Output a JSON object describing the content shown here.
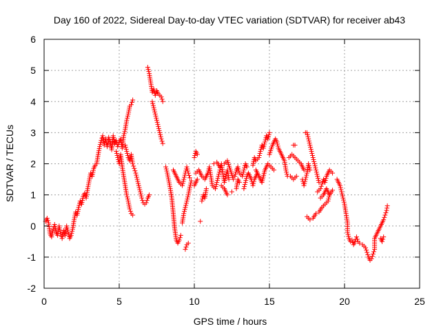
{
  "chart_data": {
    "type": "scatter",
    "title": "Day 160 of 2022, Sidereal Day-to-day VTEC variation (SDTVAR) for receiver ab43",
    "xlabel": "GPS time / hours",
    "ylabel": "SDTVAR / TECUs",
    "xlim": [
      0,
      25
    ],
    "ylim": [
      -2,
      6
    ],
    "xticks": [
      0,
      5,
      10,
      15,
      20,
      25
    ],
    "yticks": [
      -2,
      -1,
      0,
      1,
      2,
      3,
      4,
      5,
      6
    ],
    "xtick_labels": [
      "0",
      "5",
      "10",
      "15",
      "20",
      "25"
    ],
    "ytick_labels": [
      "-2",
      "-1",
      "0",
      "1",
      "2",
      "3",
      "4",
      "5",
      "6"
    ],
    "grid": true,
    "marker": "plus",
    "marker_color": "#ff0000",
    "series": [
      {
        "name": "ab43",
        "points": [
          [
            0.1,
            0.15
          ],
          [
            0.2,
            0.25
          ],
          [
            0.3,
            0.1
          ],
          [
            0.4,
            -0.25
          ],
          [
            0.5,
            -0.35
          ],
          [
            0.6,
            -0.1
          ],
          [
            0.7,
            0.05
          ],
          [
            0.8,
            -0.2
          ],
          [
            0.9,
            -0.3
          ],
          [
            1.0,
            0.0
          ],
          [
            1.1,
            -0.25
          ],
          [
            1.2,
            -0.4
          ],
          [
            1.3,
            -0.15
          ],
          [
            1.4,
            -0.3
          ],
          [
            1.5,
            0.0
          ],
          [
            1.6,
            -0.2
          ],
          [
            1.7,
            -0.4
          ],
          [
            1.8,
            -0.3
          ],
          [
            1.9,
            -0.1
          ],
          [
            2.0,
            0.2
          ],
          [
            2.1,
            0.45
          ],
          [
            2.2,
            0.35
          ],
          [
            2.3,
            0.6
          ],
          [
            2.4,
            0.8
          ],
          [
            2.5,
            0.7
          ],
          [
            2.6,
            0.95
          ],
          [
            2.7,
            1.05
          ],
          [
            2.8,
            0.9
          ],
          [
            2.9,
            1.2
          ],
          [
            3.0,
            1.45
          ],
          [
            3.1,
            1.7
          ],
          [
            3.2,
            1.6
          ],
          [
            3.3,
            1.85
          ],
          [
            3.4,
            1.95
          ],
          [
            3.5,
            2.0
          ],
          [
            3.6,
            2.3
          ],
          [
            3.7,
            2.55
          ],
          [
            3.8,
            2.75
          ],
          [
            3.9,
            2.9
          ],
          [
            4.0,
            2.6
          ],
          [
            4.1,
            2.8
          ],
          [
            4.2,
            2.55
          ],
          [
            4.3,
            2.85
          ],
          [
            4.4,
            2.7
          ],
          [
            4.5,
            2.45
          ],
          [
            4.6,
            2.9
          ],
          [
            4.7,
            2.65
          ],
          [
            4.8,
            2.75
          ],
          [
            4.9,
            2.55
          ],
          [
            5.0,
            2.7
          ],
          [
            5.1,
            2.8
          ],
          [
            5.2,
            2.5
          ],
          [
            5.3,
            2.9
          ],
          [
            5.4,
            3.1
          ],
          [
            5.5,
            3.4
          ],
          [
            5.6,
            3.6
          ],
          [
            5.7,
            3.85
          ],
          [
            5.8,
            3.9
          ],
          [
            5.9,
            4.05
          ],
          [
            4.8,
            2.4
          ],
          [
            4.9,
            2.2
          ],
          [
            5.0,
            2.0
          ],
          [
            5.1,
            2.3
          ],
          [
            5.2,
            1.9
          ],
          [
            5.3,
            1.6
          ],
          [
            5.4,
            1.3
          ],
          [
            5.5,
            1.0
          ],
          [
            5.6,
            0.8
          ],
          [
            5.7,
            0.55
          ],
          [
            5.8,
            0.4
          ],
          [
            5.9,
            0.35
          ],
          [
            5.4,
            2.6
          ],
          [
            5.5,
            2.4
          ],
          [
            5.6,
            2.2
          ],
          [
            5.7,
            2.1
          ],
          [
            5.8,
            2.3
          ],
          [
            5.9,
            2.0
          ],
          [
            6.0,
            1.85
          ],
          [
            6.1,
            1.7
          ],
          [
            6.2,
            1.5
          ],
          [
            6.3,
            1.3
          ],
          [
            6.4,
            1.1
          ],
          [
            6.5,
            0.9
          ],
          [
            6.6,
            0.75
          ],
          [
            6.7,
            0.7
          ],
          [
            6.8,
            0.75
          ],
          [
            6.9,
            0.9
          ],
          [
            7.0,
            1.0
          ],
          [
            6.9,
            5.1
          ],
          [
            7.0,
            4.9
          ],
          [
            7.1,
            4.6
          ],
          [
            7.2,
            4.3
          ],
          [
            7.3,
            4.4
          ],
          [
            7.4,
            4.2
          ],
          [
            7.5,
            4.35
          ],
          [
            7.6,
            4.25
          ],
          [
            7.7,
            4.2
          ],
          [
            7.8,
            4.15
          ],
          [
            7.9,
            4.0
          ],
          [
            7.2,
            4.0
          ],
          [
            7.3,
            3.8
          ],
          [
            7.4,
            3.6
          ],
          [
            7.5,
            3.4
          ],
          [
            7.6,
            3.2
          ],
          [
            7.7,
            3.0
          ],
          [
            7.8,
            2.8
          ],
          [
            7.9,
            2.65
          ],
          [
            8.1,
            1.9
          ],
          [
            8.2,
            1.7
          ],
          [
            8.3,
            1.45
          ],
          [
            8.4,
            1.2
          ],
          [
            8.5,
            0.9
          ],
          [
            8.6,
            0.4
          ],
          [
            8.7,
            -0.1
          ],
          [
            8.8,
            -0.45
          ],
          [
            8.9,
            -0.55
          ],
          [
            9.0,
            -0.45
          ],
          [
            9.1,
            -0.3
          ],
          [
            8.6,
            1.8
          ],
          [
            8.8,
            1.6
          ],
          [
            9.0,
            1.4
          ],
          [
            9.2,
            1.3
          ],
          [
            9.3,
            1.5
          ],
          [
            9.4,
            1.7
          ],
          [
            9.5,
            1.9
          ],
          [
            9.6,
            1.7
          ],
          [
            9.7,
            1.55
          ],
          [
            9.4,
            -0.75
          ],
          [
            9.5,
            -0.6
          ],
          [
            9.6,
            -0.55
          ],
          [
            9.2,
            0.1
          ],
          [
            9.3,
            0.4
          ],
          [
            9.4,
            0.6
          ],
          [
            9.5,
            0.8
          ],
          [
            9.6,
            1.0
          ],
          [
            9.7,
            1.25
          ],
          [
            9.8,
            1.45
          ],
          [
            10.0,
            2.2
          ],
          [
            10.1,
            2.4
          ],
          [
            10.2,
            2.3
          ],
          [
            10.0,
            1.3
          ],
          [
            10.2,
            1.5
          ],
          [
            10.4,
            0.15
          ],
          [
            10.5,
            0.8
          ],
          [
            10.6,
            1.0
          ],
          [
            10.7,
            0.9
          ],
          [
            10.8,
            1.2
          ],
          [
            10.1,
            1.7
          ],
          [
            10.3,
            1.8
          ],
          [
            10.5,
            1.6
          ],
          [
            10.7,
            1.5
          ],
          [
            10.9,
            1.7
          ],
          [
            11.0,
            1.9
          ],
          [
            11.1,
            1.6
          ],
          [
            11.2,
            1.3
          ],
          [
            11.4,
            1.2
          ],
          [
            11.5,
            1.4
          ],
          [
            11.6,
            1.6
          ],
          [
            11.7,
            1.8
          ],
          [
            11.8,
            2.0
          ],
          [
            11.9,
            1.7
          ],
          [
            12.0,
            1.4
          ],
          [
            12.1,
            1.6
          ],
          [
            12.2,
            1.8
          ],
          [
            12.3,
            1.5
          ],
          [
            11.3,
            2.0
          ],
          [
            11.5,
            2.05
          ],
          [
            11.7,
            1.9
          ],
          [
            12.0,
            2.0
          ],
          [
            12.2,
            2.1
          ],
          [
            12.4,
            1.8
          ],
          [
            12.6,
            1.5
          ],
          [
            11.8,
            1.3
          ],
          [
            12.0,
            1.2
          ],
          [
            12.2,
            1.0
          ],
          [
            12.5,
            1.1
          ],
          [
            12.8,
            1.2
          ],
          [
            12.9,
            1.5
          ],
          [
            13.0,
            1.4
          ],
          [
            12.7,
            1.6
          ],
          [
            12.8,
            1.8
          ],
          [
            12.9,
            1.9
          ],
          [
            13.0,
            1.7
          ],
          [
            13.2,
            1.6
          ],
          [
            13.3,
            1.8
          ],
          [
            13.4,
            2.0
          ],
          [
            13.5,
            1.9
          ],
          [
            13.3,
            1.2
          ],
          [
            13.4,
            1.4
          ],
          [
            13.5,
            1.6
          ],
          [
            13.6,
            1.7
          ],
          [
            13.8,
            1.5
          ],
          [
            13.9,
            1.3
          ],
          [
            14.0,
            1.5
          ],
          [
            14.2,
            1.7
          ],
          [
            13.9,
            1.95
          ],
          [
            14.0,
            2.2
          ],
          [
            14.1,
            2.1
          ],
          [
            14.3,
            2.2
          ],
          [
            14.4,
            2.4
          ],
          [
            14.5,
            2.6
          ],
          [
            14.6,
            2.5
          ],
          [
            14.7,
            2.7
          ],
          [
            14.8,
            2.9
          ],
          [
            14.9,
            2.8
          ],
          [
            15.0,
            3.0
          ],
          [
            14.1,
            1.8
          ],
          [
            14.3,
            1.6
          ],
          [
            14.5,
            1.4
          ],
          [
            14.7,
            1.8
          ],
          [
            14.9,
            2.0
          ],
          [
            15.1,
            1.9
          ],
          [
            15.3,
            1.8
          ],
          [
            15.0,
            2.3
          ],
          [
            15.2,
            2.6
          ],
          [
            15.4,
            2.8
          ],
          [
            15.5,
            2.7
          ],
          [
            15.6,
            2.5
          ],
          [
            15.8,
            2.3
          ],
          [
            16.0,
            2.1
          ],
          [
            16.1,
            1.8
          ],
          [
            16.2,
            1.6
          ],
          [
            16.4,
            1.6
          ],
          [
            16.6,
            1.5
          ],
          [
            16.8,
            1.6
          ],
          [
            16.3,
            2.2
          ],
          [
            16.5,
            2.3
          ],
          [
            16.7,
            2.2
          ],
          [
            16.9,
            2.1
          ],
          [
            17.1,
            2.0
          ],
          [
            17.3,
            1.8
          ],
          [
            16.6,
            2.6
          ],
          [
            16.7,
            2.6
          ],
          [
            17.2,
            1.5
          ],
          [
            17.3,
            1.3
          ],
          [
            17.4,
            1.5
          ],
          [
            17.5,
            1.7
          ],
          [
            17.6,
            2.0
          ],
          [
            17.7,
            1.8
          ],
          [
            17.4,
            3.0
          ],
          [
            17.5,
            3.0
          ],
          [
            17.6,
            2.8
          ],
          [
            17.7,
            2.6
          ],
          [
            17.8,
            2.4
          ],
          [
            17.9,
            2.2
          ],
          [
            18.0,
            2.0
          ],
          [
            18.1,
            1.8
          ],
          [
            18.2,
            1.6
          ],
          [
            18.3,
            1.4
          ],
          [
            17.5,
            0.3
          ],
          [
            17.7,
            0.2
          ],
          [
            17.9,
            0.25
          ],
          [
            18.1,
            0.4
          ],
          [
            18.3,
            0.45
          ],
          [
            18.5,
            0.6
          ],
          [
            18.7,
            0.7
          ],
          [
            18.9,
            0.8
          ],
          [
            19.0,
            1.0
          ],
          [
            18.2,
            1.1
          ],
          [
            18.4,
            1.2
          ],
          [
            18.5,
            1.35
          ],
          [
            18.6,
            1.5
          ],
          [
            18.7,
            1.4
          ],
          [
            18.8,
            1.6
          ],
          [
            18.9,
            1.7
          ],
          [
            19.0,
            1.8
          ],
          [
            19.1,
            1.75
          ],
          [
            19.2,
            1.7
          ],
          [
            18.4,
            0.9
          ],
          [
            18.6,
            1.0
          ],
          [
            18.8,
            1.2
          ],
          [
            19.0,
            1.0
          ],
          [
            19.2,
            1.15
          ],
          [
            19.5,
            1.5
          ],
          [
            19.6,
            1.4
          ],
          [
            19.7,
            1.3
          ],
          [
            19.8,
            1.1
          ],
          [
            19.9,
            0.9
          ],
          [
            20.0,
            0.7
          ],
          [
            20.1,
            0.4
          ],
          [
            20.2,
            0.1
          ],
          [
            20.2,
            -0.2
          ],
          [
            20.3,
            -0.4
          ],
          [
            20.4,
            -0.5
          ],
          [
            20.5,
            -0.45
          ],
          [
            20.6,
            -0.6
          ],
          [
            20.7,
            -0.5
          ],
          [
            20.8,
            -0.35
          ],
          [
            20.9,
            -0.5
          ],
          [
            21.0,
            -0.55
          ],
          [
            21.2,
            -0.6
          ],
          [
            21.4,
            -0.7
          ],
          [
            21.5,
            -0.85
          ],
          [
            21.6,
            -1.0
          ],
          [
            21.7,
            -1.1
          ],
          [
            21.8,
            -1.05
          ],
          [
            21.9,
            -0.9
          ],
          [
            22.0,
            -0.75
          ],
          [
            22.0,
            -0.4
          ],
          [
            22.1,
            -0.3
          ],
          [
            22.2,
            -0.2
          ],
          [
            22.3,
            -0.1
          ],
          [
            22.4,
            0.0
          ],
          [
            22.5,
            0.1
          ],
          [
            22.6,
            0.2
          ],
          [
            22.7,
            0.35
          ],
          [
            22.8,
            0.5
          ],
          [
            22.85,
            0.65
          ],
          [
            22.4,
            -0.4
          ],
          [
            22.5,
            -0.5
          ],
          [
            22.6,
            -0.35
          ]
        ]
      }
    ]
  }
}
